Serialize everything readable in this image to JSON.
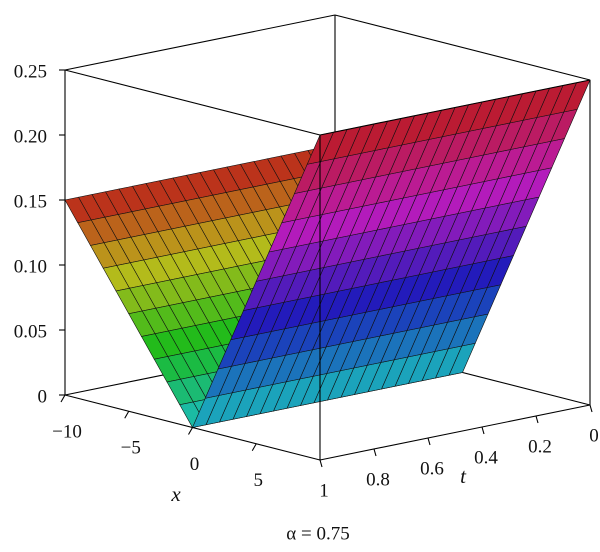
{
  "chart_data": {
    "type": "surface",
    "caption": "α = 0.75",
    "xlabel": "x",
    "ylabel": "t",
    "x": [
      -10,
      -9,
      -8,
      -7,
      -6,
      -5,
      -4,
      -3,
      -2,
      -1,
      0,
      1,
      2,
      3,
      4,
      5,
      6,
      7,
      8,
      9,
      10
    ],
    "y": [
      0,
      0.05,
      0.1,
      0.15,
      0.2,
      0.25,
      0.3,
      0.35,
      0.4,
      0.45,
      0.5,
      0.55,
      0.6,
      0.65,
      0.7,
      0.75,
      0.8,
      0.85,
      0.9,
      0.95,
      1
    ],
    "z": [
      [
        0.15,
        0.135,
        0.12,
        0.105,
        0.09,
        0.075,
        0.06,
        0.045,
        0.03,
        0.015,
        0,
        0.025,
        0.05,
        0.075,
        0.1,
        0.125,
        0.15,
        0.175,
        0.2,
        0.225,
        0.25
      ],
      [
        0.15,
        0.135,
        0.12,
        0.105,
        0.09,
        0.075,
        0.06,
        0.045,
        0.03,
        0.015,
        0,
        0.025,
        0.05,
        0.075,
        0.1,
        0.125,
        0.15,
        0.175,
        0.2,
        0.225,
        0.25
      ],
      [
        0.15,
        0.135,
        0.12,
        0.105,
        0.09,
        0.075,
        0.06,
        0.045,
        0.03,
        0.015,
        0,
        0.025,
        0.05,
        0.075,
        0.1,
        0.125,
        0.15,
        0.175,
        0.2,
        0.225,
        0.25
      ],
      [
        0.15,
        0.135,
        0.12,
        0.105,
        0.09,
        0.075,
        0.06,
        0.045,
        0.03,
        0.015,
        0,
        0.025,
        0.05,
        0.075,
        0.1,
        0.125,
        0.15,
        0.175,
        0.2,
        0.225,
        0.25
      ],
      [
        0.15,
        0.135,
        0.12,
        0.105,
        0.09,
        0.075,
        0.06,
        0.045,
        0.03,
        0.015,
        0,
        0.025,
        0.05,
        0.075,
        0.1,
        0.125,
        0.15,
        0.175,
        0.2,
        0.225,
        0.25
      ],
      [
        0.15,
        0.135,
        0.12,
        0.105,
        0.09,
        0.075,
        0.06,
        0.045,
        0.03,
        0.015,
        0,
        0.025,
        0.05,
        0.075,
        0.1,
        0.125,
        0.15,
        0.175,
        0.2,
        0.225,
        0.25
      ],
      [
        0.15,
        0.135,
        0.12,
        0.105,
        0.09,
        0.075,
        0.06,
        0.045,
        0.03,
        0.015,
        0,
        0.025,
        0.05,
        0.075,
        0.1,
        0.125,
        0.15,
        0.175,
        0.2,
        0.225,
        0.25
      ],
      [
        0.15,
        0.135,
        0.12,
        0.105,
        0.09,
        0.075,
        0.06,
        0.045,
        0.03,
        0.015,
        0,
        0.025,
        0.05,
        0.075,
        0.1,
        0.125,
        0.15,
        0.175,
        0.2,
        0.225,
        0.25
      ],
      [
        0.15,
        0.135,
        0.12,
        0.105,
        0.09,
        0.075,
        0.06,
        0.045,
        0.03,
        0.015,
        0,
        0.025,
        0.05,
        0.075,
        0.1,
        0.125,
        0.15,
        0.175,
        0.2,
        0.225,
        0.25
      ],
      [
        0.15,
        0.135,
        0.12,
        0.105,
        0.09,
        0.075,
        0.06,
        0.045,
        0.03,
        0.015,
        0,
        0.025,
        0.05,
        0.075,
        0.1,
        0.125,
        0.15,
        0.175,
        0.2,
        0.225,
        0.25
      ],
      [
        0.15,
        0.135,
        0.12,
        0.105,
        0.09,
        0.075,
        0.06,
        0.045,
        0.03,
        0.015,
        0,
        0.025,
        0.05,
        0.075,
        0.1,
        0.125,
        0.15,
        0.175,
        0.2,
        0.225,
        0.25
      ],
      [
        0.15,
        0.135,
        0.12,
        0.105,
        0.09,
        0.075,
        0.06,
        0.045,
        0.03,
        0.015,
        0,
        0.025,
        0.05,
        0.075,
        0.1,
        0.125,
        0.15,
        0.175,
        0.2,
        0.225,
        0.25
      ],
      [
        0.15,
        0.135,
        0.12,
        0.105,
        0.09,
        0.075,
        0.06,
        0.045,
        0.03,
        0.015,
        0,
        0.025,
        0.05,
        0.075,
        0.1,
        0.125,
        0.15,
        0.175,
        0.2,
        0.225,
        0.25
      ],
      [
        0.15,
        0.135,
        0.12,
        0.105,
        0.09,
        0.075,
        0.06,
        0.045,
        0.03,
        0.015,
        0,
        0.025,
        0.05,
        0.075,
        0.1,
        0.125,
        0.15,
        0.175,
        0.2,
        0.225,
        0.25
      ],
      [
        0.15,
        0.135,
        0.12,
        0.105,
        0.09,
        0.075,
        0.06,
        0.045,
        0.03,
        0.015,
        0,
        0.025,
        0.05,
        0.075,
        0.1,
        0.125,
        0.15,
        0.175,
        0.2,
        0.225,
        0.25
      ],
      [
        0.15,
        0.135,
        0.12,
        0.105,
        0.09,
        0.075,
        0.06,
        0.045,
        0.03,
        0.015,
        0,
        0.025,
        0.05,
        0.075,
        0.1,
        0.125,
        0.15,
        0.175,
        0.2,
        0.225,
        0.25
      ],
      [
        0.15,
        0.135,
        0.12,
        0.105,
        0.09,
        0.075,
        0.06,
        0.045,
        0.03,
        0.015,
        0,
        0.025,
        0.05,
        0.075,
        0.1,
        0.125,
        0.15,
        0.175,
        0.2,
        0.225,
        0.25
      ],
      [
        0.15,
        0.135,
        0.12,
        0.105,
        0.09,
        0.075,
        0.06,
        0.045,
        0.03,
        0.015,
        0,
        0.025,
        0.05,
        0.075,
        0.1,
        0.125,
        0.15,
        0.175,
        0.2,
        0.225,
        0.25
      ],
      [
        0.15,
        0.135,
        0.12,
        0.105,
        0.09,
        0.075,
        0.06,
        0.045,
        0.03,
        0.015,
        0,
        0.025,
        0.05,
        0.075,
        0.1,
        0.125,
        0.15,
        0.175,
        0.2,
        0.225,
        0.25
      ],
      [
        0.15,
        0.135,
        0.12,
        0.105,
        0.09,
        0.075,
        0.06,
        0.045,
        0.03,
        0.015,
        0,
        0.025,
        0.05,
        0.075,
        0.1,
        0.125,
        0.15,
        0.175,
        0.2,
        0.225,
        0.25
      ],
      [
        0.15,
        0.135,
        0.12,
        0.105,
        0.09,
        0.075,
        0.06,
        0.045,
        0.03,
        0.015,
        0,
        0.025,
        0.05,
        0.075,
        0.1,
        0.125,
        0.15,
        0.175,
        0.2,
        0.225,
        0.25
      ]
    ],
    "xlim": [
      -10,
      10
    ],
    "ylim": [
      0,
      1
    ],
    "zlim": [
      0,
      0.25
    ],
    "xticks": [
      {
        "value": -10,
        "label": "−10"
      },
      {
        "value": -5,
        "label": "−5"
      },
      0,
      5
    ],
    "yticks": [
      0,
      0.2,
      0.4,
      0.6,
      0.8,
      1
    ],
    "zticks": [
      0,
      0.05,
      {
        "value": 0.1,
        "label": "0.10"
      },
      0.15,
      {
        "value": 0.2,
        "label": "0.20"
      },
      0.25
    ]
  }
}
